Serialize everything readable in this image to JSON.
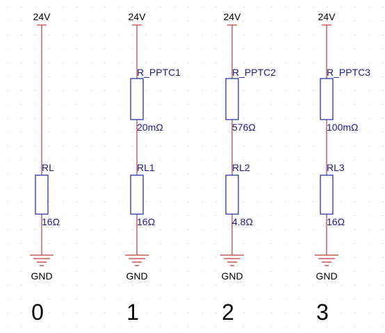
{
  "circuits": [
    {
      "supply": "24V",
      "ptc": null,
      "load": {
        "ref": "RL",
        "value": "16Ω"
      },
      "ground": "GND",
      "index": "0"
    },
    {
      "supply": "24V",
      "ptc": {
        "ref": "R_PPTC1",
        "value": "20mΩ"
      },
      "load": {
        "ref": "RL1",
        "value": "16Ω"
      },
      "ground": "GND",
      "index": "1"
    },
    {
      "supply": "24V",
      "ptc": {
        "ref": "R_PPTC2",
        "value": "576Ω"
      },
      "load": {
        "ref": "RL2",
        "value": "4.8Ω"
      },
      "ground": "GND",
      "index": "2"
    },
    {
      "supply": "24V",
      "ptc": {
        "ref": "R_PPTC3",
        "value": "100mΩ"
      },
      "load": {
        "ref": "RL3",
        "value": "16Ω"
      },
      "ground": "GND",
      "index": "3"
    }
  ],
  "colors": {
    "wire": "#c0393b",
    "component": "#2233aa",
    "designator_text": "#1a1a8c",
    "grid_dot": "#b8b8b8"
  }
}
